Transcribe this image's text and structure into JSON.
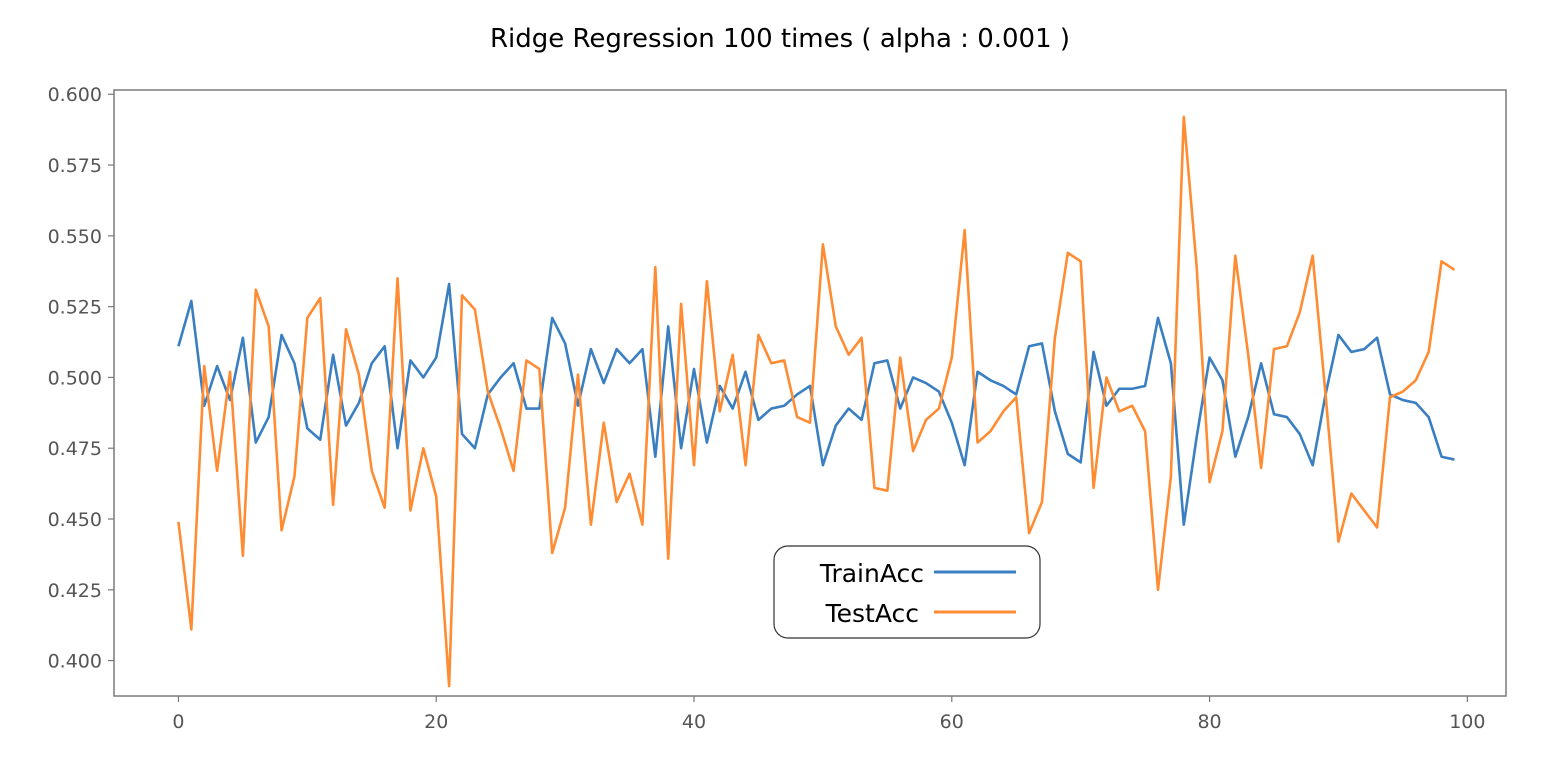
{
  "chart_data": {
    "type": "line",
    "title": "Ridge Regression 100 times ( alpha : 0.001 )",
    "xlabel": "",
    "ylabel": "",
    "xlim": [
      -5,
      103
    ],
    "ylim": [
      0.3875,
      0.6015
    ],
    "xticks": [
      0,
      20,
      40,
      60,
      80,
      100
    ],
    "yticks": [
      0.4,
      0.425,
      0.45,
      0.475,
      0.5,
      0.525,
      0.55,
      0.575,
      0.6
    ],
    "xtick_labels": [
      "0",
      "20",
      "40",
      "60",
      "80",
      "100"
    ],
    "ytick_labels": [
      "0.400",
      "0.425",
      "0.450",
      "0.475",
      "0.500",
      "0.525",
      "0.550",
      "0.575",
      "0.600"
    ],
    "grid": false,
    "legend_position": "lower-center",
    "x": [
      0,
      1,
      2,
      3,
      4,
      5,
      6,
      7,
      8,
      9,
      10,
      11,
      12,
      13,
      14,
      15,
      16,
      17,
      18,
      19,
      20,
      21,
      22,
      23,
      24,
      25,
      26,
      27,
      28,
      29,
      30,
      31,
      32,
      33,
      34,
      35,
      36,
      37,
      38,
      39,
      40,
      41,
      42,
      43,
      44,
      45,
      46,
      47,
      48,
      49,
      50,
      51,
      52,
      53,
      54,
      55,
      56,
      57,
      58,
      59,
      60,
      61,
      62,
      63,
      64,
      65,
      66,
      67,
      68,
      69,
      70,
      71,
      72,
      73,
      74,
      75,
      76,
      77,
      78,
      79,
      80,
      81,
      82,
      83,
      84,
      85,
      86,
      87,
      88,
      89,
      90,
      91,
      92,
      93,
      94,
      95,
      96,
      97,
      98,
      99
    ],
    "series": [
      {
        "name": "TrainAcc",
        "color": "#3a7fc1",
        "values": [
          0.511,
          0.527,
          0.49,
          0.504,
          0.492,
          0.514,
          0.477,
          0.486,
          0.515,
          0.505,
          0.482,
          0.478,
          0.508,
          0.483,
          0.491,
          0.505,
          0.511,
          0.475,
          0.506,
          0.5,
          0.507,
          0.533,
          0.48,
          0.475,
          0.494,
          0.5,
          0.505,
          0.489,
          0.489,
          0.521,
          0.512,
          0.49,
          0.51,
          0.498,
          0.51,
          0.505,
          0.51,
          0.472,
          0.518,
          0.475,
          0.503,
          0.477,
          0.497,
          0.489,
          0.502,
          0.485,
          0.489,
          0.49,
          0.494,
          0.497,
          0.469,
          0.483,
          0.489,
          0.485,
          0.505,
          0.506,
          0.489,
          0.5,
          0.498,
          0.495,
          0.484,
          0.469,
          0.502,
          0.499,
          0.497,
          0.494,
          0.511,
          0.512,
          0.488,
          0.473,
          0.47,
          0.509,
          0.49,
          0.496,
          0.496,
          0.497,
          0.521,
          0.505,
          0.448,
          0.479,
          0.507,
          0.499,
          0.472,
          0.486,
          0.505,
          0.487,
          0.486,
          0.48,
          0.469,
          0.494,
          0.515,
          0.509,
          0.51,
          0.514,
          0.494,
          0.492,
          0.491,
          0.486,
          0.472,
          0.471
        ]
      },
      {
        "name": "TestAcc",
        "color": "#ff8c33",
        "values": [
          0.449,
          0.411,
          0.504,
          0.467,
          0.502,
          0.437,
          0.531,
          0.518,
          0.446,
          0.465,
          0.521,
          0.528,
          0.455,
          0.517,
          0.501,
          0.467,
          0.454,
          0.535,
          0.453,
          0.475,
          0.458,
          0.391,
          0.529,
          0.524,
          0.495,
          0.482,
          0.467,
          0.506,
          0.503,
          0.438,
          0.454,
          0.501,
          0.448,
          0.484,
          0.456,
          0.466,
          0.448,
          0.539,
          0.436,
          0.526,
          0.469,
          0.534,
          0.488,
          0.508,
          0.469,
          0.515,
          0.505,
          0.506,
          0.486,
          0.484,
          0.547,
          0.518,
          0.508,
          0.514,
          0.461,
          0.46,
          0.507,
          0.474,
          0.485,
          0.489,
          0.507,
          0.552,
          0.477,
          0.481,
          0.488,
          0.493,
          0.445,
          0.456,
          0.514,
          0.544,
          0.541,
          0.461,
          0.5,
          0.488,
          0.49,
          0.481,
          0.425,
          0.465,
          0.592,
          0.539,
          0.463,
          0.481,
          0.543,
          0.508,
          0.468,
          0.51,
          0.511,
          0.523,
          0.543,
          0.494,
          0.442,
          0.459,
          0.453,
          0.447,
          0.493,
          0.495,
          0.499,
          0.509,
          0.541,
          0.538
        ]
      }
    ]
  }
}
